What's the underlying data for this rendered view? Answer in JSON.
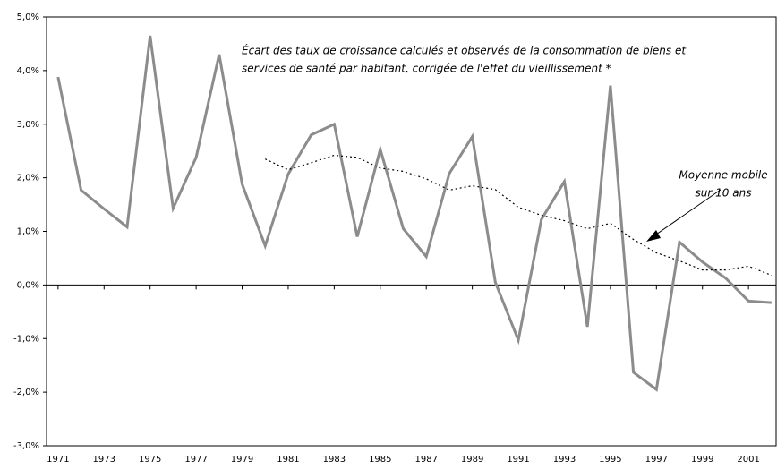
{
  "chart_data": {
    "type": "line",
    "annotations": [
      {
        "lines": [
          "Écart des taux de croissance calculés et observés de la consommation de biens et",
          "services de santé par habitant, corrigée de l'effet du vieillissement *"
        ]
      },
      {
        "lines": [
          "Moyenne mobile",
          "sur 10 ans"
        ]
      }
    ],
    "x": [
      1971,
      1972,
      1973,
      1974,
      1975,
      1976,
      1977,
      1978,
      1979,
      1980,
      1981,
      1982,
      1983,
      1984,
      1985,
      1986,
      1987,
      1988,
      1989,
      1990,
      1991,
      1992,
      1993,
      1994,
      1995,
      1996,
      1997,
      1998,
      1999,
      2000,
      2001,
      2002
    ],
    "series": [
      {
        "color": "#8c8c8c",
        "style": "solid",
        "values": [
          3.88,
          1.77,
          1.42,
          1.08,
          4.65,
          1.43,
          2.38,
          4.3,
          1.88,
          0.73,
          2.07,
          2.8,
          3.0,
          0.9,
          2.53,
          1.05,
          0.53,
          2.08,
          2.77,
          0.05,
          -1.03,
          1.22,
          1.93,
          -0.78,
          3.72,
          -1.63,
          -1.95,
          0.8,
          0.43,
          0.13,
          -0.3,
          -0.33
        ]
      },
      {
        "color": "#000000",
        "style": "dotted",
        "values": [
          null,
          null,
          null,
          null,
          null,
          null,
          null,
          null,
          null,
          2.35,
          2.15,
          2.28,
          2.42,
          2.38,
          2.18,
          2.12,
          1.98,
          1.77,
          1.85,
          1.78,
          1.45,
          1.3,
          1.2,
          1.05,
          1.15,
          0.85,
          0.6,
          0.45,
          0.28,
          0.28,
          0.35,
          0.18
        ]
      }
    ],
    "xlim": [
      1970.5,
      2002.2
    ],
    "xticks": [
      1971,
      1973,
      1975,
      1977,
      1979,
      1981,
      1983,
      1985,
      1987,
      1989,
      1991,
      1993,
      1995,
      1997,
      1999,
      2001
    ],
    "ylim": [
      -3,
      5
    ],
    "yticks": [
      {
        "value": -3,
        "label": "-3,0%"
      },
      {
        "value": -2,
        "label": "-2,0%"
      },
      {
        "value": -1,
        "label": "-1,0%"
      },
      {
        "value": 0,
        "label": "0,0%"
      },
      {
        "value": 1,
        "label": "1,0%"
      },
      {
        "value": 2,
        "label": "2,0%"
      },
      {
        "value": 3,
        "label": "3,0%"
      },
      {
        "value": 4,
        "label": "4,0%"
      },
      {
        "value": 5,
        "label": "5,0%"
      }
    ]
  }
}
